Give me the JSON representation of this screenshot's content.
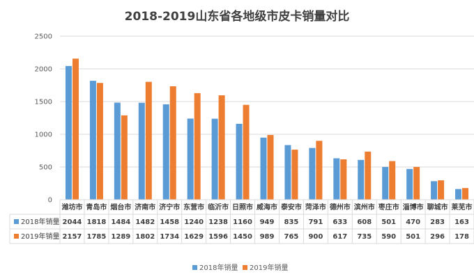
{
  "chart_data": {
    "type": "bar",
    "title": "2018-2019山东省各地级市皮卡销量对比",
    "categories": [
      "潍坊市",
      "青岛市",
      "烟台市",
      "济南市",
      "济宁市",
      "东营市",
      "临沂市",
      "日照市",
      "威海市",
      "泰安市",
      "菏泽市",
      "德州市",
      "滨州市",
      "枣庄市",
      "淄博市",
      "聊城市",
      "莱芜市"
    ],
    "series": [
      {
        "name": "2018年销量",
        "color": "#5b9bd5",
        "values": [
          2044,
          1818,
          1484,
          1482,
          1458,
          1240,
          1238,
          1160,
          949,
          835,
          791,
          633,
          608,
          501,
          470,
          283,
          163
        ]
      },
      {
        "name": "2019年销量",
        "color": "#ed7d31",
        "values": [
          2157,
          1785,
          1289,
          1802,
          1734,
          1629,
          1596,
          1450,
          989,
          765,
          900,
          617,
          735,
          590,
          501,
          296,
          178
        ]
      }
    ],
    "ylim": [
      0,
      2500
    ],
    "yticks": [
      "0",
      "500",
      "1000",
      "1500",
      "2000",
      "2500"
    ],
    "grid": true,
    "legend_position": "bottom",
    "data_table": true
  }
}
